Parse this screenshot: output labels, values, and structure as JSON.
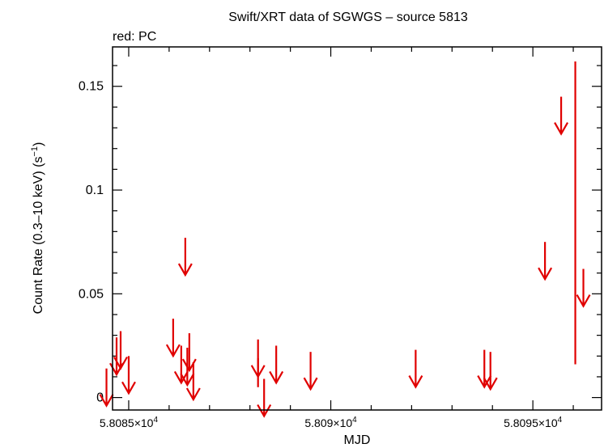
{
  "chart_data": {
    "type": "scatter",
    "title": "Swift/XRT data of SGWGS – source 5813",
    "subtitle": "red: PC",
    "xlabel": "MJD",
    "ylabel": "Count Rate (0.3–10 keV) (s",
    "ylabel_sup": "−1",
    "ylabel_end": ")",
    "xlim": [
      58084.6,
      58096.7
    ],
    "ylim": [
      -0.006,
      0.169
    ],
    "x_ticks": [
      {
        "value": 58085,
        "mantissa": "5.8085×10",
        "exp": "4"
      },
      {
        "value": 58090,
        "mantissa": "5.809×10",
        "exp": "4"
      },
      {
        "value": 58095,
        "mantissa": "5.8095×10",
        "exp": "4"
      }
    ],
    "y_ticks": [
      {
        "value": 0,
        "label": "0"
      },
      {
        "value": 0.05,
        "label": "0.05"
      },
      {
        "value": 0.1,
        "label": "0.1"
      },
      {
        "value": 0.15,
        "label": "0.15"
      }
    ],
    "grid": false,
    "series_color": "#e00000",
    "upper_limits": [
      {
        "x": 58084.45,
        "y": 0.014
      },
      {
        "x": 58084.7,
        "y": 0.029
      },
      {
        "x": 58084.8,
        "y": 0.032
      },
      {
        "x": 58085.0,
        "y": 0.02
      },
      {
        "x": 58086.1,
        "y": 0.038
      },
      {
        "x": 58086.3,
        "y": 0.025
      },
      {
        "x": 58086.4,
        "y": 0.077
      },
      {
        "x": 58086.45,
        "y": 0.024
      },
      {
        "x": 58086.5,
        "y": 0.031
      },
      {
        "x": 58086.6,
        "y": 0.017
      },
      {
        "x": 58088.2,
        "y": 0.028
      },
      {
        "x": 58088.35,
        "y": 0.009
      },
      {
        "x": 58088.65,
        "y": 0.025
      },
      {
        "x": 58089.5,
        "y": 0.022
      },
      {
        "x": 58092.1,
        "y": 0.023
      },
      {
        "x": 58093.8,
        "y": 0.023
      },
      {
        "x": 58093.95,
        "y": 0.022
      },
      {
        "x": 58095.7,
        "y": 0.145
      },
      {
        "x": 58095.3,
        "y": 0.075
      },
      {
        "x": 58096.25,
        "y": 0.062
      }
    ],
    "detections": [
      {
        "x": 58088.2,
        "y": 0.016,
        "yerr_low": 0.011,
        "yerr_high": 0.003
      },
      {
        "x": 58096.05,
        "y": 0.055,
        "yerr_low": 0.039,
        "yerr_high": 0.107
      }
    ]
  }
}
